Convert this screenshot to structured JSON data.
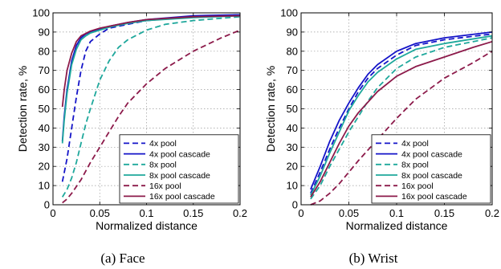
{
  "chart_data": [
    {
      "type": "line",
      "caption": "(a) Face",
      "xlabel": "Normalized distance",
      "ylabel": "Detection rate, %",
      "xlim": [
        0,
        0.2
      ],
      "ylim": [
        0,
        100
      ],
      "xticks": [
        0,
        0.05,
        0.1,
        0.15,
        0.2
      ],
      "xtick_labels": [
        "0",
        "0.05",
        "0.1",
        "0.15",
        "0.2"
      ],
      "yticks": [
        0,
        10,
        20,
        30,
        40,
        50,
        60,
        70,
        80,
        90,
        100
      ],
      "ytick_labels": [
        "0",
        "10",
        "20",
        "30",
        "40",
        "50",
        "60",
        "70",
        "80",
        "90",
        "100"
      ],
      "grid": true,
      "legend_position": "bottom-right",
      "series": [
        {
          "name": "4x pool",
          "color": "#1414c8",
          "dash": "dashed",
          "x": [
            0.01,
            0.015,
            0.02,
            0.025,
            0.03,
            0.035,
            0.04,
            0.05,
            0.06,
            0.08,
            0.1,
            0.15,
            0.2
          ],
          "y": [
            12,
            24,
            40,
            56,
            70,
            80,
            85,
            89,
            92,
            94,
            96,
            98,
            99
          ]
        },
        {
          "name": "4x pool cascade",
          "color": "#1414c8",
          "dash": "solid",
          "x": [
            0.01,
            0.012,
            0.015,
            0.02,
            0.025,
            0.03,
            0.035,
            0.04,
            0.05,
            0.06,
            0.08,
            0.1,
            0.15,
            0.2
          ],
          "y": [
            33,
            46,
            60,
            75,
            83,
            87,
            89,
            90,
            91.5,
            93,
            95,
            96.5,
            98.5,
            99
          ]
        },
        {
          "name": "8x pool",
          "color": "#1fa89c",
          "dash": "dashed",
          "x": [
            0.01,
            0.015,
            0.02,
            0.025,
            0.03,
            0.035,
            0.04,
            0.05,
            0.06,
            0.07,
            0.08,
            0.1,
            0.12,
            0.15,
            0.2
          ],
          "y": [
            4,
            8,
            14,
            22,
            32,
            42,
            50,
            65,
            75,
            82,
            86,
            91,
            94,
            96,
            98
          ]
        },
        {
          "name": "8x pool cascade",
          "color": "#1fa89c",
          "dash": "solid",
          "x": [
            0.01,
            0.012,
            0.015,
            0.02,
            0.025,
            0.03,
            0.035,
            0.04,
            0.05,
            0.06,
            0.08,
            0.1,
            0.15,
            0.2
          ],
          "y": [
            32,
            44,
            58,
            73,
            81,
            86,
            88,
            89.5,
            91,
            92.5,
            94.5,
            96,
            97.5,
            98.5
          ]
        },
        {
          "name": "16x pool",
          "color": "#8c1a4a",
          "dash": "dashed",
          "x": [
            0.01,
            0.015,
            0.02,
            0.03,
            0.04,
            0.05,
            0.06,
            0.07,
            0.08,
            0.1,
            0.12,
            0.15,
            0.18,
            0.2
          ],
          "y": [
            1,
            3,
            6,
            13,
            22,
            30,
            38,
            46,
            53,
            63,
            71,
            80,
            87,
            91
          ]
        },
        {
          "name": "16x pool cascade",
          "color": "#8c1a4a",
          "dash": "solid",
          "x": [
            0.01,
            0.012,
            0.015,
            0.02,
            0.025,
            0.03,
            0.04,
            0.05,
            0.06,
            0.08,
            0.1,
            0.15,
            0.2
          ],
          "y": [
            51,
            60,
            70,
            79,
            85,
            88,
            90.5,
            92,
            93,
            95,
            96.5,
            98,
            98.5
          ]
        }
      ]
    },
    {
      "type": "line",
      "caption": "(b) Wrist",
      "xlabel": "Normalized distance",
      "ylabel": "Detection rate, %",
      "xlim": [
        0,
        0.2
      ],
      "ylim": [
        0,
        100
      ],
      "xticks": [
        0,
        0.05,
        0.1,
        0.15,
        0.2
      ],
      "xtick_labels": [
        "0",
        "0.05",
        "0.1",
        "0.15",
        "0.2"
      ],
      "yticks": [
        0,
        10,
        20,
        30,
        40,
        50,
        60,
        70,
        80,
        90,
        100
      ],
      "ytick_labels": [
        "0",
        "10",
        "20",
        "30",
        "40",
        "50",
        "60",
        "70",
        "80",
        "90",
        "100"
      ],
      "grid": true,
      "legend_position": "bottom-right",
      "series": [
        {
          "name": "4x pool",
          "color": "#1414c8",
          "dash": "dashed",
          "x": [
            0.01,
            0.02,
            0.03,
            0.04,
            0.05,
            0.06,
            0.07,
            0.08,
            0.1,
            0.12,
            0.15,
            0.2
          ],
          "y": [
            6,
            17,
            29,
            40,
            50,
            59,
            66,
            71,
            78,
            83,
            86,
            89
          ]
        },
        {
          "name": "4x pool cascade",
          "color": "#1414c8",
          "dash": "solid",
          "x": [
            0.01,
            0.02,
            0.03,
            0.04,
            0.05,
            0.06,
            0.07,
            0.08,
            0.1,
            0.12,
            0.15,
            0.2
          ],
          "y": [
            8,
            20,
            33,
            44,
            53,
            61,
            68,
            73,
            80,
            84,
            87,
            90
          ]
        },
        {
          "name": "8x pool",
          "color": "#1fa89c",
          "dash": "dashed",
          "x": [
            0.01,
            0.02,
            0.03,
            0.04,
            0.05,
            0.06,
            0.07,
            0.08,
            0.1,
            0.12,
            0.15,
            0.2
          ],
          "y": [
            3,
            10,
            20,
            29,
            38,
            46,
            54,
            61,
            71,
            77,
            82,
            87
          ]
        },
        {
          "name": "8x pool cascade",
          "color": "#1fa89c",
          "dash": "solid",
          "x": [
            0.01,
            0.02,
            0.03,
            0.04,
            0.05,
            0.06,
            0.07,
            0.08,
            0.1,
            0.12,
            0.15,
            0.2
          ],
          "y": [
            5,
            15,
            27,
            38,
            49,
            57,
            64,
            69,
            76,
            81,
            84,
            88
          ]
        },
        {
          "name": "16x pool",
          "color": "#8c1a4a",
          "dash": "dashed",
          "x": [
            0.01,
            0.02,
            0.03,
            0.04,
            0.05,
            0.06,
            0.08,
            0.1,
            0.12,
            0.15,
            0.18,
            0.2
          ],
          "y": [
            0,
            2,
            6,
            11,
            17,
            23,
            34,
            45,
            55,
            66,
            74,
            80
          ]
        },
        {
          "name": "16x pool cascade",
          "color": "#8c1a4a",
          "dash": "solid",
          "x": [
            0.01,
            0.02,
            0.03,
            0.04,
            0.05,
            0.06,
            0.08,
            0.1,
            0.12,
            0.15,
            0.18,
            0.2
          ],
          "y": [
            4,
            12,
            22,
            32,
            41,
            48,
            59,
            67,
            72,
            77,
            82,
            85
          ]
        }
      ]
    }
  ]
}
